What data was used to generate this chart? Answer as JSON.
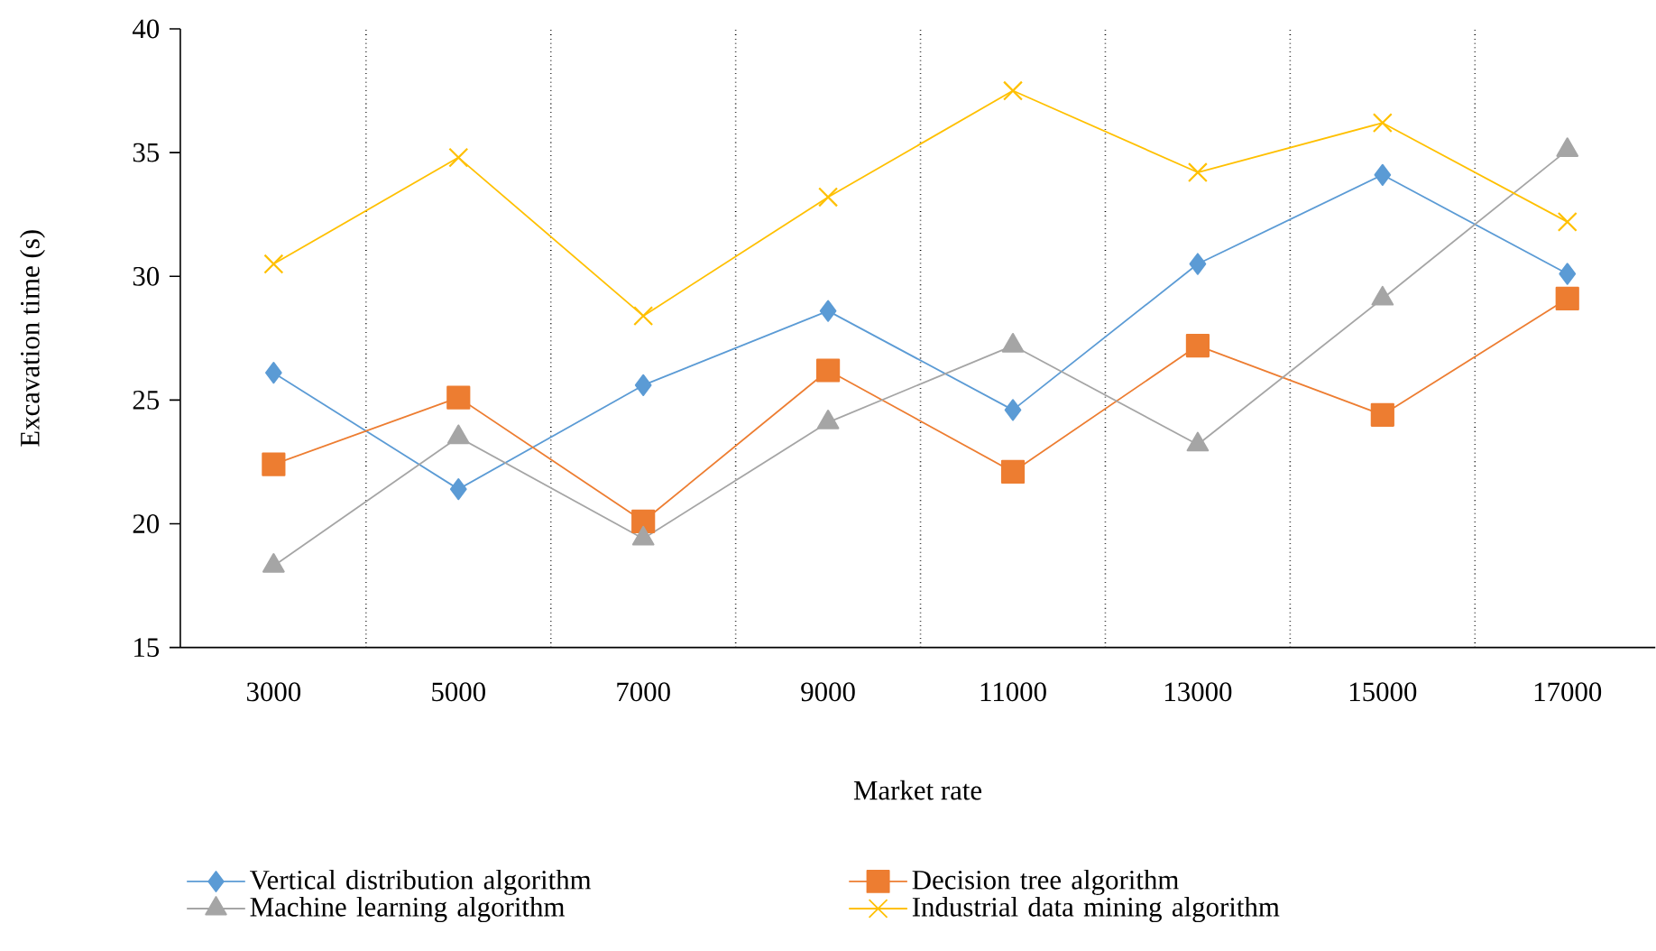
{
  "chart_data": {
    "type": "line",
    "xlabel": "Market rate",
    "ylabel": "Excavation time (s)",
    "categories": [
      "3000",
      "5000",
      "7000",
      "9000",
      "11000",
      "13000",
      "15000",
      "17000"
    ],
    "ylim": [
      15,
      40
    ],
    "yticks": [
      15,
      20,
      25,
      30,
      35,
      40
    ],
    "grid": "x",
    "legend": "bottom",
    "series": [
      {
        "name": "Vertical distribution algorithm",
        "color": "#5b9bd5",
        "marker": "diamond",
        "values": [
          26.1,
          21.4,
          25.6,
          28.6,
          24.6,
          30.5,
          34.1,
          30.1
        ]
      },
      {
        "name": "Decision tree algorithm",
        "color": "#ed7d31",
        "marker": "square",
        "values": [
          22.4,
          25.1,
          20.1,
          26.2,
          22.1,
          27.2,
          24.4,
          29.1
        ]
      },
      {
        "name": "Machine learning algorithm",
        "color": "#a5a5a5",
        "marker": "triangle",
        "values": [
          18.3,
          23.5,
          19.4,
          24.1,
          27.2,
          23.2,
          29.1,
          35.1
        ]
      },
      {
        "name": "Industrial data mining algorithm",
        "color": "#ffc000",
        "marker": "cross",
        "values": [
          30.5,
          34.8,
          28.4,
          33.2,
          37.5,
          34.2,
          36.2,
          32.2
        ]
      }
    ]
  }
}
